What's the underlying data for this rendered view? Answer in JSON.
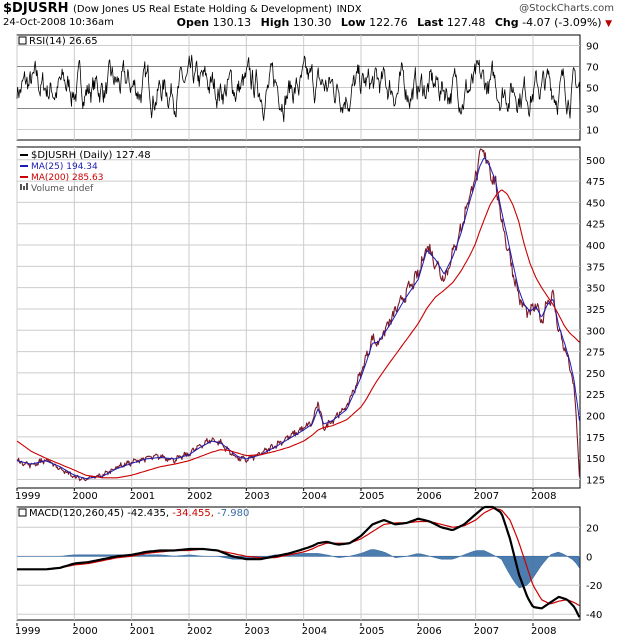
{
  "header": {
    "symbol": "$DJUSRH",
    "description": "(Dow Jones US Real Estate Holding & Development)",
    "exchange": "INDX",
    "datetime": "24-Oct-2008 10:36am",
    "watermark": "@StockCharts.com",
    "open_label": "Open",
    "open": "130.13",
    "high_label": "High",
    "high": "130.30",
    "low_label": "Low",
    "low": "122.76",
    "last_label": "Last",
    "last": "127.48",
    "chg_label": "Chg",
    "chg": "-4.07 (-3.09%)",
    "chg_arrow": "▼"
  },
  "colors": {
    "price": "#000000",
    "ma25": "#1c1cb4",
    "ma200": "#cc0000",
    "macd": "#000000",
    "signal": "#cc0000",
    "hist": "#3a6ea5",
    "grid": "#cccccc",
    "band": "#888888"
  },
  "chart_data": [
    {
      "type": "line",
      "panel": "rsi",
      "legend": "RSI(14) 26.65",
      "yticks": [
        90,
        70,
        50,
        30,
        10
      ],
      "ylim": [
        0,
        100
      ],
      "bands": [
        70,
        30
      ],
      "last_value": 26.65
    },
    {
      "type": "line",
      "panel": "price",
      "title": "$DJUSRH (Daily) 127.48",
      "legend": [
        {
          "name": "$DJUSRH (Daily) 127.48",
          "color": "#000000"
        },
        {
          "name": "MA(25) 194.34",
          "color": "#1c1cb4"
        },
        {
          "name": "MA(200) 285.63",
          "color": "#cc0000"
        },
        {
          "name": "Volume undef",
          "color": "#555555"
        }
      ],
      "yticks": [
        500,
        475,
        450,
        425,
        400,
        375,
        350,
        325,
        300,
        275,
        250,
        225,
        200,
        175,
        150,
        125
      ],
      "ylim": [
        115,
        515
      ],
      "xlabels": [
        "1999",
        "2000",
        "2001",
        "2002",
        "2003",
        "2004",
        "2005",
        "2006",
        "2007",
        "2008"
      ],
      "x": [
        1999.0,
        1999.25,
        1999.5,
        1999.75,
        2000.0,
        2000.2,
        2000.5,
        2000.75,
        2001.0,
        2001.25,
        2001.5,
        2001.75,
        2002.0,
        2002.2,
        2002.4,
        2002.55,
        2002.7,
        2002.85,
        2003.0,
        2003.25,
        2003.5,
        2003.75,
        2004.0,
        2004.15,
        2004.25,
        2004.35,
        2004.5,
        2004.75,
        2005.0,
        2005.1,
        2005.2,
        2005.3,
        2005.5,
        2005.75,
        2006.0,
        2006.15,
        2006.3,
        2006.45,
        2006.6,
        2006.75,
        2006.9,
        2007.0,
        2007.07,
        2007.15,
        2007.25,
        2007.35,
        2007.45,
        2007.55,
        2007.65,
        2007.75,
        2007.85,
        2007.95,
        2008.05,
        2008.15,
        2008.25,
        2008.35,
        2008.45,
        2008.55,
        2008.65,
        2008.72,
        2008.78,
        2008.81
      ],
      "series": [
        {
          "name": "$DJUSRH",
          "values": [
            147,
            142,
            148,
            138,
            128,
            125,
            130,
            140,
            145,
            150,
            152,
            148,
            155,
            165,
            172,
            168,
            158,
            150,
            148,
            155,
            165,
            175,
            185,
            192,
            215,
            185,
            195,
            210,
            250,
            270,
            290,
            285,
            310,
            340,
            365,
            400,
            380,
            360,
            390,
            420,
            460,
            480,
            500,
            510,
            490,
            470,
            430,
            400,
            370,
            340,
            325,
            320,
            330,
            310,
            335,
            340,
            300,
            280,
            255,
            230,
            170,
            128
          ]
        },
        {
          "name": "MA(25)",
          "values": [
            147,
            143,
            147,
            140,
            130,
            126,
            129,
            138,
            144,
            149,
            151,
            149,
            154,
            163,
            170,
            168,
            160,
            152,
            149,
            154,
            163,
            173,
            183,
            190,
            208,
            190,
            194,
            207,
            245,
            264,
            285,
            286,
            306,
            335,
            360,
            394,
            383,
            366,
            386,
            415,
            452,
            474,
            492,
            503,
            492,
            475,
            440,
            410,
            378,
            348,
            330,
            322,
            328,
            315,
            330,
            337,
            305,
            285,
            262,
            240,
            210,
            194
          ]
        },
        {
          "name": "MA(200)",
          "values": [
            170,
            158,
            150,
            143,
            136,
            130,
            127,
            127,
            130,
            135,
            140,
            143,
            147,
            152,
            157,
            160,
            159,
            156,
            153,
            154,
            158,
            163,
            170,
            177,
            183,
            186,
            188,
            195,
            210,
            220,
            232,
            243,
            262,
            285,
            308,
            326,
            339,
            347,
            356,
            370,
            388,
            402,
            416,
            430,
            447,
            458,
            465,
            460,
            447,
            428,
            400,
            378,
            362,
            350,
            340,
            330,
            318,
            305,
            296,
            292,
            288,
            286
          ]
        }
      ]
    },
    {
      "type": "line",
      "panel": "macd",
      "legend": "MACD(120,260,45) -42.435, -34.455, -7.980",
      "legend_parts": {
        "label": "MACD(120,260,45)",
        "macd": "-42.435",
        "signal": "-34.455",
        "hist": "-7.980"
      },
      "yticks": [
        20,
        0,
        -20,
        -40
      ],
      "ylim": [
        -44,
        34
      ],
      "xlabels": [
        "1999",
        "2000",
        "2001",
        "2002",
        "2003",
        "2004",
        "2005",
        "2006",
        "2007",
        "2008"
      ],
      "x": [
        1999.0,
        1999.25,
        1999.5,
        1999.75,
        2000.0,
        2000.25,
        2000.5,
        2000.75,
        2001.0,
        2001.25,
        2001.5,
        2001.75,
        2002.0,
        2002.25,
        2002.5,
        2002.75,
        2003.0,
        2003.25,
        2003.5,
        2003.75,
        2004.0,
        2004.15,
        2004.25,
        2004.4,
        2004.6,
        2004.8,
        2005.0,
        2005.2,
        2005.4,
        2005.6,
        2005.8,
        2006.0,
        2006.2,
        2006.4,
        2006.6,
        2006.8,
        2007.0,
        2007.15,
        2007.3,
        2007.45,
        2007.6,
        2007.75,
        2007.9,
        2008.0,
        2008.15,
        2008.3,
        2008.45,
        2008.6,
        2008.72,
        2008.81
      ],
      "series": [
        {
          "name": "MACD",
          "values": [
            -9,
            -9,
            -9,
            -8,
            -5,
            -4,
            -2,
            0,
            1,
            3,
            4,
            4,
            5,
            5,
            4,
            0,
            -2,
            -2,
            0,
            2,
            5,
            7,
            9,
            10,
            8,
            9,
            14,
            22,
            25,
            22,
            23,
            26,
            24,
            20,
            18,
            22,
            29,
            34,
            34,
            30,
            12,
            -12,
            -28,
            -35,
            -36,
            -32,
            -28,
            -30,
            -35,
            -42
          ]
        },
        {
          "name": "Signal",
          "values": [
            -9,
            -9,
            -9,
            -8,
            -6,
            -5,
            -3,
            -1,
            0,
            2,
            3,
            4,
            4,
            5,
            4,
            2,
            0,
            -1,
            -1,
            1,
            3,
            5,
            7,
            9,
            9,
            9,
            12,
            17,
            22,
            23,
            23,
            24,
            24,
            22,
            20,
            21,
            25,
            30,
            33,
            32,
            25,
            10,
            -8,
            -20,
            -30,
            -33,
            -31,
            -30,
            -32,
            -34
          ]
        },
        {
          "name": "Histogram",
          "values": [
            0,
            0,
            0,
            0,
            1,
            1,
            1,
            1,
            1,
            1,
            1,
            0,
            1,
            0,
            0,
            -2,
            -2,
            -1,
            1,
            1,
            2,
            2,
            2,
            1,
            -1,
            0,
            2,
            5,
            3,
            -1,
            0,
            2,
            0,
            -2,
            -2,
            1,
            4,
            4,
            1,
            -2,
            -13,
            -22,
            -20,
            -15,
            -6,
            1,
            3,
            0,
            -3,
            -8
          ]
        }
      ]
    }
  ]
}
